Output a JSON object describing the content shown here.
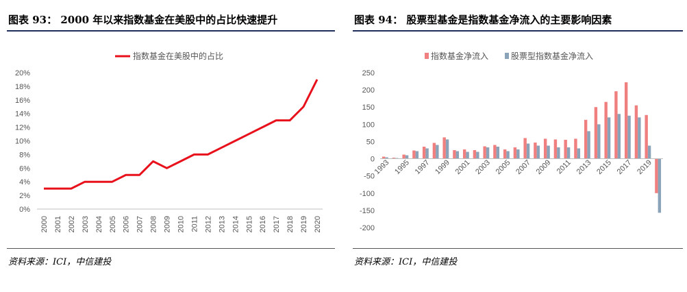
{
  "left_panel": {
    "title": "图表 93： 2000 年以来指数基金在美股中的占比快速提升",
    "source": "资料来源：ICI，中信建投"
  },
  "right_panel": {
    "title": "图表 94： 股票型基金是指数基金净流入的主要影响因素",
    "source": "资料来源：ICI，中信建投"
  },
  "chart_data": [
    {
      "type": "line",
      "x": [
        "2000",
        "2001",
        "2002",
        "2003",
        "2004",
        "2005",
        "2006",
        "2007",
        "2008",
        "2009",
        "2010",
        "2011",
        "2012",
        "2013",
        "2014",
        "2015",
        "2016",
        "2017",
        "2018",
        "2019",
        "2020"
      ],
      "series": [
        {
          "name": "指数基金在美股中的占比",
          "values": [
            3,
            3,
            3,
            4,
            4,
            4,
            5,
            5,
            7,
            6,
            7,
            8,
            8,
            9,
            10,
            11,
            12,
            13,
            13,
            15,
            19
          ],
          "color": "#e8101a"
        }
      ],
      "y_ticks": [
        "0%",
        "2%",
        "4%",
        "6%",
        "8%",
        "10%",
        "12%",
        "14%",
        "16%",
        "18%",
        "20%"
      ],
      "ylim": [
        0,
        20
      ],
      "legend_position": "top-center"
    },
    {
      "type": "bar",
      "categories": [
        "1993",
        "1994",
        "1995",
        "1996",
        "1997",
        "1998",
        "1999",
        "2000",
        "2001",
        "2002",
        "2003",
        "2004",
        "2005",
        "2006",
        "2007",
        "2008",
        "2009",
        "2010",
        "2011",
        "2012",
        "2013",
        "2014",
        "2015",
        "2016",
        "2017",
        "2018",
        "2019",
        "2020"
      ],
      "x_tick_labels": [
        "1993",
        "1995",
        "1997",
        "1999",
        "2001",
        "2003",
        "2005",
        "2007",
        "2009",
        "2011",
        "2013",
        "2015",
        "2017",
        "2019"
      ],
      "series": [
        {
          "name": "指数基金净流入",
          "color": "#f08080",
          "values": [
            6,
            3,
            12,
            24,
            35,
            46,
            62,
            25,
            27,
            25,
            36,
            40,
            27,
            33,
            60,
            47,
            58,
            56,
            55,
            58,
            113,
            150,
            165,
            196,
            222,
            155,
            127,
            -100
          ]
        },
        {
          "name": "股票型指数基金净流入",
          "color": "#8ba3b8",
          "values": [
            4,
            2,
            10,
            22,
            30,
            40,
            56,
            22,
            20,
            20,
            33,
            35,
            22,
            27,
            44,
            38,
            38,
            33,
            33,
            30,
            80,
            100,
            120,
            130,
            125,
            120,
            38,
            -157
          ]
        }
      ],
      "y_ticks": [
        "250",
        "200",
        "150",
        "100",
        "50",
        "0",
        "-50",
        "-100",
        "-150",
        "-200"
      ],
      "ylim": [
        -200,
        250
      ],
      "legend_position": "top-center"
    }
  ]
}
